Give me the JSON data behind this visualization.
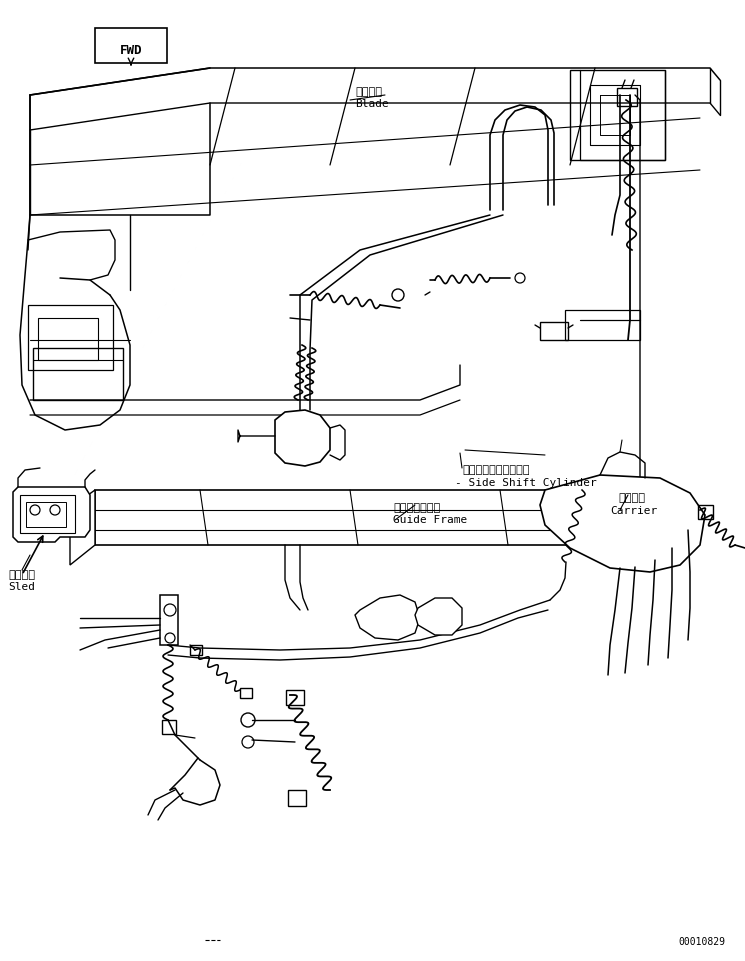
{
  "bg_color": "#ffffff",
  "fig_width": 7.45,
  "fig_height": 9.61,
  "dpi": 100,
  "part_number": "00010829",
  "lc": "#000000",
  "lw": 1.0,
  "labels": {
    "blade_jp": "ブレード",
    "blade_en": "Blade",
    "ssc_jp": "サイドシフトシリンダ",
    "ssc_en": "Side Shift Cylinder",
    "gf_jp": "ガイドフレーム",
    "gf_en": "Guide Frame",
    "carrier_jp": "キャリア",
    "carrier_en": "Carrier",
    "sled_jp": "スレッド",
    "sled_en": "Sled",
    "fwd": "FWD"
  }
}
